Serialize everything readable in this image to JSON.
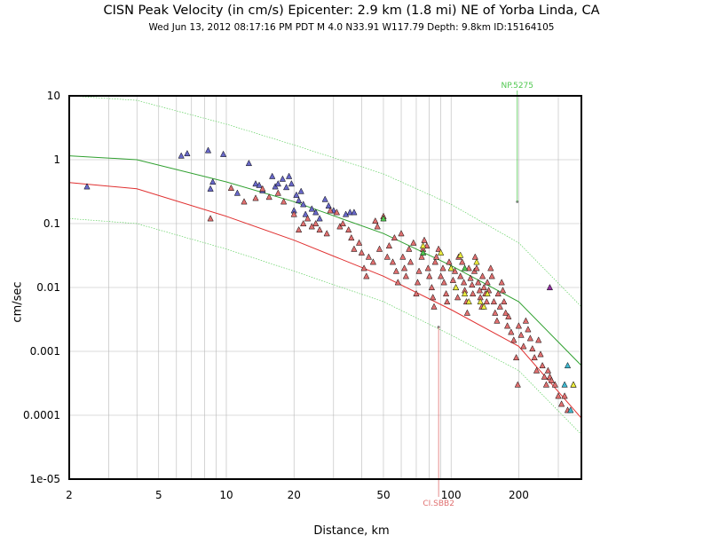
{
  "chart_data": {
    "type": "scatter",
    "title": "CISN Peak Velocity (in cm/s) Epicenter: 2.9 km (1.8 mi) NE of Yorba Linda, CA",
    "subtitle": "Wed Jun 13, 2012 08:17:16 PM PDT   M 4.0    N33.91 W117.79   Depth: 9.8km   ID:15164105",
    "xlabel": "Distance, km",
    "ylabel": "cm/sec",
    "xscale": "log",
    "yscale": "log",
    "xlim": [
      2,
      380
    ],
    "ylim": [
      1e-05,
      10
    ],
    "grid": true,
    "x_ticks": [
      {
        "v": 2,
        "label": "2"
      },
      {
        "v": 5,
        "label": "5"
      },
      {
        "v": 10,
        "label": "10"
      },
      {
        "v": 20,
        "label": "20"
      },
      {
        "v": 50,
        "label": "50"
      },
      {
        "v": 100,
        "label": "100"
      },
      {
        "v": 200,
        "label": "200"
      }
    ],
    "y_ticks": [
      {
        "v": 10,
        "label": "10"
      },
      {
        "v": 1,
        "label": "1"
      },
      {
        "v": 0.1,
        "label": "0.1"
      },
      {
        "v": 0.01,
        "label": "0.01"
      },
      {
        "v": 0.001,
        "label": "0.001"
      },
      {
        "v": 0.0001,
        "label": "0.0001"
      },
      {
        "v": 1e-05,
        "label": "1e-05"
      }
    ],
    "colors": {
      "red": "#e07070",
      "blue": "#6868c8",
      "yellow": "#ecec40",
      "green": "#50c850",
      "cyan": "#40b8d0",
      "purple": "#9030a0",
      "curve_green": "#30a030",
      "curve_red": "#e03030",
      "curve_dotted": "#60d060",
      "grid": "#b8b8b8"
    },
    "curves": [
      {
        "style": "solid",
        "color": "curve_green",
        "points": [
          [
            2,
            1.15
          ],
          [
            4,
            1.0
          ],
          [
            10,
            0.45
          ],
          [
            20,
            0.22
          ],
          [
            50,
            0.07
          ],
          [
            100,
            0.022
          ],
          [
            200,
            0.006
          ],
          [
            380,
            0.0006
          ]
        ]
      },
      {
        "style": "solid",
        "color": "curve_red",
        "points": [
          [
            2,
            0.44
          ],
          [
            4,
            0.35
          ],
          [
            10,
            0.13
          ],
          [
            20,
            0.055
          ],
          [
            50,
            0.015
          ],
          [
            100,
            0.0045
          ],
          [
            200,
            0.0012
          ],
          [
            380,
            9e-05
          ]
        ]
      },
      {
        "style": "dotted",
        "color": "curve_dotted",
        "points": [
          [
            2,
            10
          ],
          [
            4,
            8.5
          ],
          [
            10,
            3.6
          ],
          [
            20,
            1.7
          ],
          [
            50,
            0.6
          ],
          [
            100,
            0.2
          ],
          [
            200,
            0.05
          ],
          [
            380,
            0.005
          ]
        ]
      },
      {
        "style": "dotted",
        "color": "curve_dotted",
        "points": [
          [
            2,
            0.12
          ],
          [
            4,
            0.1
          ],
          [
            10,
            0.04
          ],
          [
            20,
            0.018
          ],
          [
            50,
            0.006
          ],
          [
            100,
            0.0018
          ],
          [
            200,
            0.0005
          ],
          [
            380,
            5e-05
          ]
        ]
      }
    ],
    "annotations": [
      {
        "label": "NP.5275",
        "x": 197,
        "y": 0.22,
        "position": "top",
        "color": "#50c850"
      },
      {
        "label": "CI.SBB2",
        "x": 88,
        "y": 0.0024,
        "position": "bottom",
        "color": "#e07070"
      }
    ],
    "series": [
      {
        "color": "blue",
        "points": [
          [
            2.4,
            0.38
          ],
          [
            6.3,
            1.15
          ],
          [
            6.7,
            1.25
          ],
          [
            8.3,
            1.4
          ],
          [
            9.7,
            1.22
          ],
          [
            8.7,
            0.45
          ],
          [
            8.5,
            0.35
          ],
          [
            11.2,
            0.3
          ],
          [
            12.6,
            0.88
          ],
          [
            13.5,
            0.42
          ],
          [
            14,
            0.4
          ],
          [
            14.5,
            0.33
          ],
          [
            16,
            0.55
          ],
          [
            16.5,
            0.38
          ],
          [
            17,
            0.42
          ],
          [
            17.8,
            0.5
          ],
          [
            18.5,
            0.37
          ],
          [
            19,
            0.55
          ],
          [
            19.5,
            0.42
          ],
          [
            20.5,
            0.28
          ],
          [
            21,
            0.23
          ],
          [
            21.5,
            0.32
          ],
          [
            22,
            0.2
          ],
          [
            20,
            0.16
          ],
          [
            22.5,
            0.14
          ],
          [
            24,
            0.17
          ],
          [
            25,
            0.15
          ],
          [
            26,
            0.12
          ],
          [
            27.5,
            0.24
          ],
          [
            28.5,
            0.19
          ],
          [
            30,
            0.16
          ],
          [
            34,
            0.14
          ],
          [
            35.5,
            0.15
          ],
          [
            37,
            0.15
          ]
        ]
      },
      {
        "color": "red",
        "points": [
          [
            8.5,
            0.12
          ],
          [
            10.5,
            0.36
          ],
          [
            12,
            0.22
          ],
          [
            13.5,
            0.25
          ],
          [
            14.5,
            0.35
          ],
          [
            15.5,
            0.26
          ],
          [
            17,
            0.3
          ],
          [
            18,
            0.22
          ],
          [
            20,
            0.14
          ],
          [
            21,
            0.08
          ],
          [
            22,
            0.1
          ],
          [
            23,
            0.12
          ],
          [
            25,
            0.1
          ],
          [
            24,
            0.09
          ],
          [
            26,
            0.08
          ],
          [
            28,
            0.07
          ],
          [
            29,
            0.16
          ],
          [
            31,
            0.15
          ],
          [
            32,
            0.09
          ],
          [
            33,
            0.1
          ],
          [
            35,
            0.08
          ],
          [
            36,
            0.06
          ],
          [
            37,
            0.04
          ],
          [
            39,
            0.05
          ],
          [
            40,
            0.035
          ],
          [
            41,
            0.02
          ],
          [
            42,
            0.015
          ],
          [
            43,
            0.03
          ],
          [
            45,
            0.025
          ],
          [
            46,
            0.11
          ],
          [
            47,
            0.09
          ],
          [
            48,
            0.04
          ],
          [
            50,
            0.13
          ],
          [
            52,
            0.03
          ],
          [
            53,
            0.045
          ],
          [
            55,
            0.025
          ],
          [
            56,
            0.06
          ],
          [
            57,
            0.018
          ],
          [
            58,
            0.012
          ],
          [
            60,
            0.07
          ],
          [
            61,
            0.03
          ],
          [
            62,
            0.02
          ],
          [
            63,
            0.015
          ],
          [
            65,
            0.04
          ],
          [
            66,
            0.025
          ],
          [
            68,
            0.05
          ],
          [
            70,
            0.008
          ],
          [
            71,
            0.012
          ],
          [
            72,
            0.018
          ],
          [
            74,
            0.03
          ],
          [
            75,
            0.04
          ],
          [
            76,
            0.055
          ],
          [
            78,
            0.045
          ],
          [
            79,
            0.02
          ],
          [
            80,
            0.015
          ],
          [
            82,
            0.01
          ],
          [
            83,
            0.007
          ],
          [
            84,
            0.005
          ],
          [
            85,
            0.025
          ],
          [
            86,
            0.03
          ],
          [
            88,
            0.04
          ],
          [
            90,
            0.015
          ],
          [
            92,
            0.02
          ],
          [
            93,
            0.012
          ],
          [
            95,
            0.008
          ],
          [
            96,
            0.006
          ],
          [
            98,
            0.025
          ],
          [
            100,
            0.02
          ],
          [
            102,
            0.013
          ],
          [
            104,
            0.018
          ],
          [
            105,
            0.01
          ],
          [
            107,
            0.007
          ],
          [
            108,
            0.03
          ],
          [
            110,
            0.015
          ],
          [
            112,
            0.025
          ],
          [
            114,
            0.012
          ],
          [
            115,
            0.009
          ],
          [
            117,
            0.006
          ],
          [
            118,
            0.004
          ],
          [
            120,
            0.02
          ],
          [
            122,
            0.014
          ],
          [
            124,
            0.011
          ],
          [
            125,
            0.008
          ],
          [
            127,
            0.018
          ],
          [
            128,
            0.03
          ],
          [
            130,
            0.02
          ],
          [
            132,
            0.012
          ],
          [
            134,
            0.009
          ],
          [
            135,
            0.007
          ],
          [
            137,
            0.005
          ],
          [
            138,
            0.015
          ],
          [
            140,
            0.01
          ],
          [
            142,
            0.008
          ],
          [
            144,
            0.006
          ],
          [
            145,
            0.012
          ],
          [
            147,
            0.009
          ],
          [
            150,
            0.02
          ],
          [
            152,
            0.015
          ],
          [
            155,
            0.006
          ],
          [
            157,
            0.004
          ],
          [
            160,
            0.003
          ],
          [
            162,
            0.008
          ],
          [
            165,
            0.005
          ],
          [
            168,
            0.012
          ],
          [
            170,
            0.009
          ],
          [
            172,
            0.006
          ],
          [
            175,
            0.004
          ],
          [
            178,
            0.0025
          ],
          [
            180,
            0.0035
          ],
          [
            185,
            0.002
          ],
          [
            190,
            0.0015
          ],
          [
            195,
            0.0008
          ],
          [
            198,
            0.0003
          ],
          [
            200,
            0.0025
          ],
          [
            205,
            0.0018
          ],
          [
            210,
            0.0012
          ],
          [
            215,
            0.003
          ],
          [
            220,
            0.0022
          ],
          [
            225,
            0.0016
          ],
          [
            230,
            0.0011
          ],
          [
            235,
            0.0008
          ],
          [
            240,
            0.0005
          ],
          [
            245,
            0.0015
          ],
          [
            250,
            0.0009
          ],
          [
            255,
            0.0006
          ],
          [
            260,
            0.0004
          ],
          [
            265,
            0.0003
          ],
          [
            270,
            0.0005
          ],
          [
            275,
            0.0004
          ],
          [
            280,
            0.00035
          ],
          [
            290,
            0.0003
          ],
          [
            300,
            0.0002
          ],
          [
            310,
            0.00015
          ],
          [
            320,
            0.0002
          ],
          [
            330,
            0.00012
          ],
          [
            350,
            0.0003
          ]
        ]
      },
      {
        "color": "yellow",
        "points": [
          [
            75,
            0.045
          ],
          [
            90,
            0.035
          ],
          [
            100,
            0.02
          ],
          [
            105,
            0.01
          ],
          [
            110,
            0.032
          ],
          [
            115,
            0.008
          ],
          [
            120,
            0.006
          ],
          [
            130,
            0.025
          ],
          [
            135,
            0.006
          ],
          [
            140,
            0.005
          ],
          [
            145,
            0.008
          ],
          [
            350,
            0.0003
          ]
        ]
      },
      {
        "color": "green",
        "points": [
          [
            50,
            0.12
          ],
          [
            75,
            0.035
          ],
          [
            115,
            0.02
          ]
        ]
      },
      {
        "color": "cyan",
        "points": [
          [
            330,
            0.0006
          ],
          [
            320,
            0.0003
          ],
          [
            340,
            0.00012
          ]
        ]
      },
      {
        "color": "purple",
        "points": [
          [
            275,
            0.01
          ]
        ]
      }
    ]
  }
}
